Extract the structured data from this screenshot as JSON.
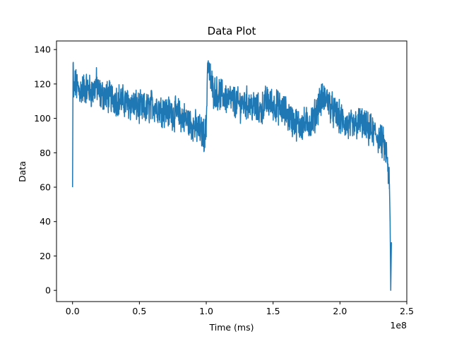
{
  "chart_data": {
    "type": "line",
    "title": "Data Plot",
    "xlabel": "Time (ms)",
    "ylabel": "Data",
    "x_offset_text": "1e8",
    "xlim": [
      -0.12,
      2.5
    ],
    "ylim": [
      -6.5,
      145
    ],
    "x_ticks": [
      0.0,
      0.5,
      1.0,
      1.5,
      2.0,
      2.5
    ],
    "x_tick_labels": [
      "0.0",
      "0.5",
      "1.0",
      "1.5",
      "2.0",
      "2.5"
    ],
    "y_ticks": [
      0,
      20,
      40,
      60,
      80,
      100,
      120,
      140
    ],
    "y_tick_labels": [
      "0",
      "20",
      "40",
      "60",
      "80",
      "100",
      "120",
      "140"
    ],
    "grid": false,
    "legend": "none",
    "colors": {
      "line": "#1f77b4",
      "axes": "#000000",
      "background": "#ffffff"
    },
    "series": [
      {
        "x": [
          0.0,
          0.004,
          0.008,
          0.02,
          0.05,
          0.1,
          0.15,
          0.18,
          0.2,
          0.25,
          0.3,
          0.35,
          0.4,
          0.45,
          0.5,
          0.55,
          0.6,
          0.65,
          0.7,
          0.75,
          0.8,
          0.85,
          0.9,
          0.95,
          0.99,
          1.0,
          1.01,
          1.05,
          1.1,
          1.15,
          1.2,
          1.25,
          1.3,
          1.35,
          1.4,
          1.45,
          1.5,
          1.55,
          1.6,
          1.65,
          1.7,
          1.75,
          1.8,
          1.85,
          1.9,
          1.95,
          2.0,
          2.05,
          2.1,
          2.15,
          2.2,
          2.25,
          2.3,
          2.33,
          2.35,
          2.36,
          2.37,
          2.375,
          2.38,
          2.385
        ],
        "y": [
          60,
          132,
          115,
          120,
          116,
          118,
          115,
          120,
          114,
          113,
          112,
          111,
          109,
          108,
          106,
          105,
          108,
          106,
          104,
          103,
          102,
          99,
          96,
          93,
          90,
          95,
          132,
          116,
          114,
          112,
          110,
          108,
          109,
          107,
          104,
          110,
          108,
          106,
          103,
          98,
          96,
          97,
          99,
          110,
          112,
          104,
          100,
          96,
          95,
          98,
          94,
          92,
          88,
          84,
          78,
          70,
          62,
          40,
          0,
          28
        ],
        "noise_amplitude": 8
      }
    ]
  }
}
